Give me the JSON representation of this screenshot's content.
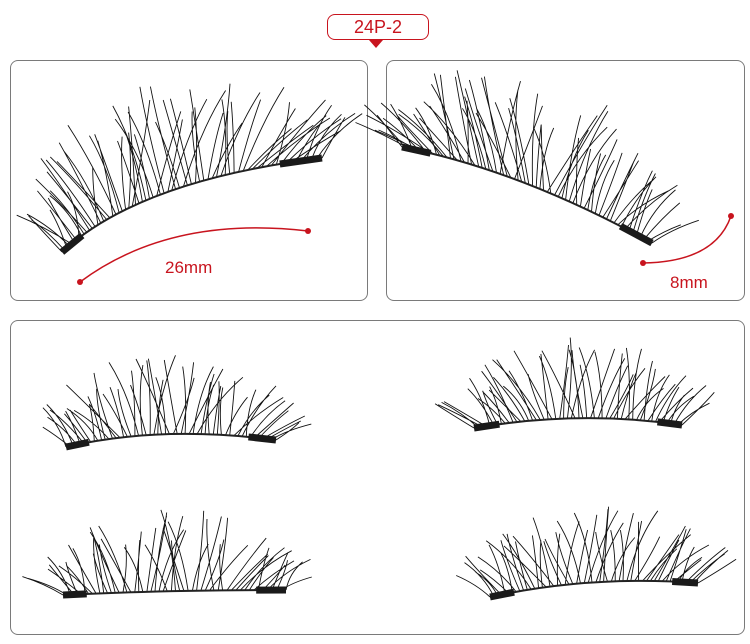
{
  "product_label": "24P-2",
  "measurements": {
    "length": "26mm",
    "curl": "8mm"
  },
  "colors": {
    "accent": "#c8141e",
    "border": "#7a7a7a",
    "lash": "#111111"
  }
}
